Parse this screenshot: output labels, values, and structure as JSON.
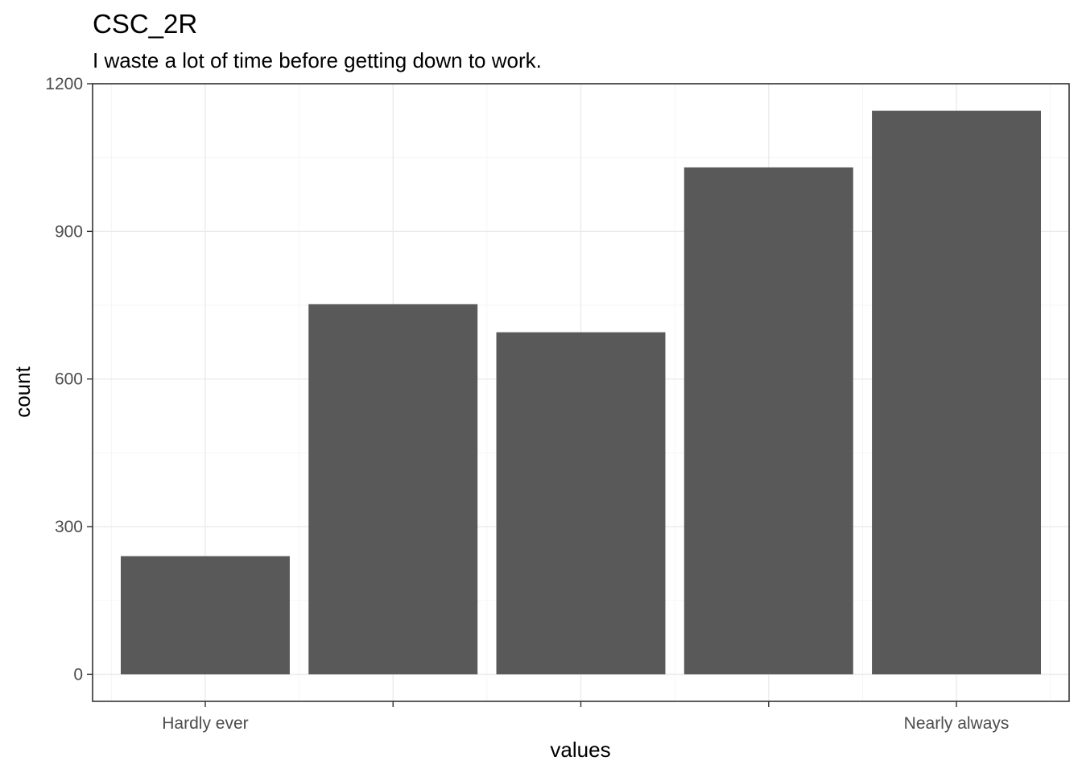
{
  "chart_data": {
    "type": "bar",
    "title": "CSC_2R",
    "subtitle": "I waste a lot of time before getting down to work.",
    "xlabel": "values",
    "ylabel": "count",
    "categories": [
      "1",
      "2",
      "3",
      "4",
      "5"
    ],
    "x_tick_labels": [
      "Hardly ever",
      "",
      "",
      "",
      "Nearly always"
    ],
    "values": [
      240,
      752,
      695,
      1030,
      1145
    ],
    "ylim": [
      -55,
      1200
    ],
    "y_ticks": [
      0,
      300,
      600,
      900,
      1200
    ],
    "grid": true,
    "legend": "none",
    "bar_color": "#595959"
  }
}
